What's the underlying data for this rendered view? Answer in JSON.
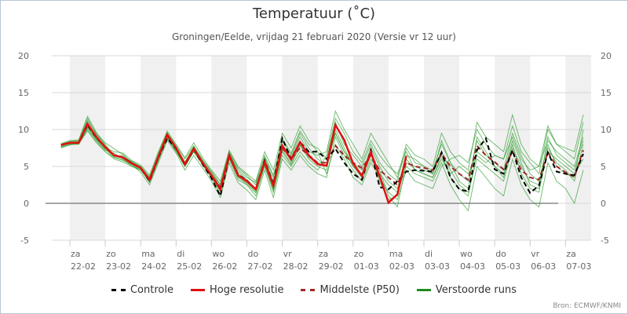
{
  "chart_data": {
    "type": "line",
    "title": "Temperatuur (˚C)",
    "subtitle": "Groningen/Eelde, vrijdag 21 februari 2020 (Versie vr 12 uur)",
    "source": "Bron: ECMWF/KNMI",
    "ylim": [
      -5,
      20
    ],
    "yticks": [
      -5,
      0,
      5,
      10,
      15,
      20
    ],
    "x_start_day": -0.25,
    "x_step_days": 0.25,
    "x_ticks": [
      {
        "day": "za",
        "date": "22-02"
      },
      {
        "day": "zo",
        "date": "23-02"
      },
      {
        "day": "ma",
        "date": "24-02"
      },
      {
        "day": "di",
        "date": "25-02"
      },
      {
        "day": "wo",
        "date": "26-02"
      },
      {
        "day": "do",
        "date": "27-02"
      },
      {
        "day": "vr",
        "date": "28-02"
      },
      {
        "day": "za",
        "date": "29-02"
      },
      {
        "day": "zo",
        "date": "01-03"
      },
      {
        "day": "ma",
        "date": "02-03"
      },
      {
        "day": "di",
        "date": "03-03"
      },
      {
        "day": "wo",
        "date": "04-03"
      },
      {
        "day": "do",
        "date": "05-03"
      },
      {
        "day": "vr",
        "date": "06-03"
      },
      {
        "day": "za",
        "date": "07-03"
      }
    ],
    "colors": {
      "control": "#000000",
      "hires": "#e01010",
      "median": "#a02828",
      "members": "#1e8c1e",
      "band": "#f0f0f0"
    },
    "legend": [
      "Controle",
      "Hoge resolutie",
      "Middelste (P50)",
      "Verstoorde runs"
    ],
    "members": [
      [
        7.6,
        8.0,
        8.0,
        10.2,
        8.6,
        7.2,
        6.8,
        6.0,
        5.0,
        4.5,
        3.5,
        6.8,
        9.6,
        7.8,
        6.0,
        7.8,
        5.8,
        4.2,
        2.5,
        6.8,
        4.5,
        3.5,
        2.8,
        6.2,
        3.5,
        8.5,
        6.5,
        9.5,
        7.5,
        6.0,
        5.0,
        9.5,
        7.0,
        5.0,
        4.0,
        7.5,
        5.0,
        3.0,
        2.0,
        6.5,
        6.0,
        5.0,
        4.0,
        8.5,
        5.5,
        3.0,
        2.0,
        9.0,
        7.0,
        5.0,
        3.5,
        8.0,
        4.0,
        2.0,
        1.5,
        7.5,
        5.5,
        4.5,
        3.0,
        8.0
      ],
      [
        8.0,
        8.4,
        8.5,
        11.5,
        9.3,
        8.0,
        6.4,
        6.5,
        5.6,
        5.0,
        2.8,
        5.8,
        8.8,
        7.0,
        5.0,
        7.0,
        5.2,
        3.4,
        1.2,
        6.0,
        3.2,
        2.5,
        1.0,
        5.0,
        1.5,
        6.5,
        5.0,
        7.0,
        5.5,
        4.5,
        6.5,
        11.5,
        9.5,
        7.0,
        5.5,
        8.5,
        6.5,
        5.0,
        4.0,
        7.0,
        4.5,
        4.0,
        3.5,
        6.0,
        4.0,
        5.0,
        4.0,
        6.5,
        5.5,
        6.5,
        6.0,
        9.0,
        6.0,
        4.5,
        5.0,
        8.5,
        7.0,
        6.0,
        5.0,
        9.0
      ],
      [
        7.8,
        8.1,
        8.3,
        10.5,
        8.8,
        7.5,
        7.0,
        6.8,
        5.8,
        5.2,
        3.8,
        7.0,
        9.8,
        8.0,
        6.2,
        8.2,
        6.2,
        4.5,
        3.0,
        7.2,
        5.0,
        4.0,
        3.0,
        7.0,
        4.5,
        9.5,
        7.5,
        10.5,
        8.5,
        7.0,
        4.0,
        8.0,
        6.0,
        3.5,
        2.5,
        5.5,
        3.5,
        1.5,
        0.5,
        4.5,
        3.0,
        2.5,
        2.0,
        5.0,
        6.0,
        6.5,
        5.5,
        10.0,
        8.0,
        6.5,
        6.0,
        10.5,
        7.0,
        5.5,
        4.0,
        10.0,
        8.0,
        7.0,
        6.0,
        11.0
      ],
      [
        7.7,
        8.2,
        8.0,
        10.0,
        8.4,
        7.0,
        6.2,
        5.8,
        5.2,
        4.2,
        2.5,
        5.5,
        8.5,
        6.8,
        4.5,
        6.5,
        4.8,
        3.0,
        0.8,
        5.5,
        2.8,
        1.8,
        0.5,
        4.5,
        0.8,
        6.0,
        4.5,
        6.5,
        5.0,
        4.0,
        3.5,
        9.0,
        6.5,
        4.5,
        3.0,
        6.0,
        4.0,
        2.5,
        1.5,
        5.0,
        4.0,
        3.5,
        3.0,
        5.5,
        2.5,
        0.5,
        -1.0,
        5.0,
        3.5,
        2.0,
        1.0,
        6.0,
        2.5,
        0.5,
        -0.5,
        5.5,
        3.0,
        2.0,
        0.0,
        4.5
      ],
      [
        7.9,
        8.3,
        8.4,
        11.2,
        9.5,
        8.2,
        7.4,
        6.6,
        5.5,
        4.9,
        3.4,
        6.6,
        9.4,
        7.6,
        5.6,
        7.6,
        5.6,
        4.0,
        2.2,
        6.8,
        4.2,
        3.2,
        2.0,
        6.0,
        3.0,
        8.0,
        6.2,
        9.0,
        7.0,
        6.5,
        7.0,
        12.5,
        10.0,
        8.0,
        6.0,
        9.5,
        7.5,
        5.5,
        3.5,
        8.0,
        6.5,
        6.0,
        5.0,
        9.5,
        7.0,
        5.5,
        4.5,
        11.0,
        9.0,
        8.0,
        7.0,
        12.0,
        8.0,
        6.0,
        5.0,
        10.5,
        8.0,
        7.5,
        7.0,
        12.0
      ],
      [
        7.5,
        7.9,
        8.1,
        9.8,
        8.2,
        7.0,
        6.0,
        5.6,
        5.0,
        4.6,
        3.0,
        6.0,
        9.0,
        7.2,
        5.0,
        7.0,
        5.3,
        3.6,
        1.6,
        6.2,
        3.5,
        2.8,
        1.6,
        5.4,
        2.0,
        7.2,
        5.4,
        8.0,
        6.0,
        5.0,
        4.5,
        10.0,
        7.5,
        5.0,
        3.5,
        6.5,
        4.5,
        1.0,
        -0.5,
        5.5,
        5.0,
        4.5,
        4.0,
        7.0,
        4.5,
        2.5,
        1.5,
        6.0,
        5.0,
        4.0,
        3.0,
        7.5,
        5.0,
        3.0,
        2.5,
        7.0,
        6.0,
        5.0,
        4.0,
        6.0
      ],
      [
        8.1,
        8.5,
        8.6,
        11.8,
        9.6,
        7.8,
        6.6,
        6.3,
        5.7,
        5.0,
        3.6,
        6.4,
        9.2,
        7.4,
        5.5,
        7.7,
        5.9,
        4.3,
        2.6,
        7.0,
        4.8,
        3.8,
        2.5,
        6.5,
        3.8,
        8.8,
        6.8,
        9.8,
        8.0,
        7.5,
        6.0,
        11.0,
        8.0,
        6.5,
        5.0,
        8.0,
        5.5,
        4.0,
        3.0,
        7.5,
        5.5,
        5.0,
        4.5,
        8.0,
        5.5,
        4.0,
        3.0,
        8.5,
        6.5,
        5.5,
        4.5,
        9.5,
        6.5,
        4.0,
        3.0,
        8.0,
        5.0,
        4.0,
        3.5,
        10.0
      ],
      [
        7.6,
        8.0,
        8.2,
        10.4,
        8.7,
        7.3,
        6.3,
        5.9,
        5.3,
        4.5,
        2.9,
        6.1,
        8.9,
        7.1,
        5.2,
        7.2,
        5.4,
        3.7,
        1.7,
        6.3,
        3.6,
        2.6,
        1.4,
        5.2,
        1.8,
        7.0,
        5.2,
        7.8,
        6.2,
        5.5,
        5.5,
        9.5,
        7.0,
        5.5,
        4.5,
        7.0,
        3.0,
        0.5,
        1.0,
        6.0,
        4.5,
        4.0,
        3.5,
        6.5,
        3.5,
        2.0,
        1.0,
        7.0,
        6.0,
        5.0,
        4.0,
        8.5,
        5.5,
        2.5,
        2.0,
        9.0,
        6.5,
        5.5,
        4.5,
        8.5
      ]
    ],
    "control": [
      7.9,
      8.2,
      8.2,
      10.6,
      8.9,
      7.6,
      6.5,
      6.2,
      5.4,
      4.8,
      3.0,
      6.2,
      8.8,
      7.4,
      5.2,
      7.3,
      5.3,
      3.4,
      1.0,
      6.4,
      3.9,
      3.1,
      1.9,
      5.8,
      2.6,
      8.8,
      6.0,
      8.3,
      7.0,
      7.0,
      6.0,
      7.4,
      5.5,
      4.0,
      3.2,
      7.2,
      2.2,
      1.9,
      3.0,
      4.3,
      4.5,
      4.4,
      4.3,
      6.9,
      3.5,
      1.9,
      1.6,
      7.2,
      8.8,
      4.6,
      4.0,
      7.2,
      3.5,
      1.4,
      2.4,
      6.9,
      4.3,
      4.0,
      3.8,
      6.7
    ],
    "hires": [
      7.9,
      8.2,
      8.2,
      10.8,
      9.0,
      7.6,
      6.5,
      6.2,
      5.4,
      4.8,
      3.2,
      6.3,
      9.3,
      7.5,
      5.3,
      7.4,
      5.5,
      3.8,
      1.9,
      6.5,
      3.8,
      3.0,
      1.9,
      5.6,
      2.4,
      7.8,
      5.9,
      8.3,
      6.5,
      5.3,
      5.1,
      10.6,
      8.6,
      5.4,
      3.7,
      6.9,
      3.7,
      0.1,
      1.2,
      6.4
    ],
    "median": [
      7.9,
      8.2,
      8.2,
      10.7,
      9.0,
      7.6,
      6.5,
      6.2,
      5.4,
      4.8,
      3.2,
      6.3,
      9.2,
      7.5,
      5.3,
      7.4,
      5.5,
      3.8,
      2.2,
      6.5,
      3.8,
      3.0,
      1.9,
      5.6,
      2.4,
      7.5,
      6.0,
      7.5,
      6.5,
      5.5,
      5.5,
      7.8,
      6.5,
      5.5,
      4.8,
      6.5,
      4.5,
      3.5,
      2.5,
      5.5,
      5.0,
      4.8,
      4.5,
      6.8,
      5.0,
      4.0,
      3.2,
      7.8,
      6.5,
      5.6,
      4.6,
      7.0,
      4.5,
      3.5,
      3.2,
      6.9,
      5.0,
      4.2,
      3.6,
      7.2
    ]
  }
}
